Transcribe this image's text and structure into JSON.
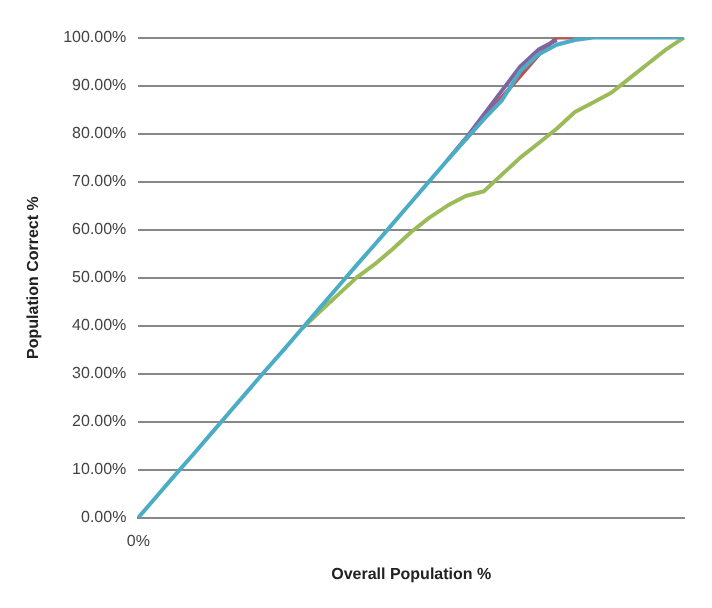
{
  "chart_data": {
    "type": "line",
    "xlabel": "Overall Population %",
    "ylabel": "Population Correct %",
    "categories": [
      "0%",
      null,
      null,
      null,
      null,
      null,
      null,
      null,
      null,
      null,
      null,
      null,
      null,
      null,
      null,
      null,
      null,
      null,
      null,
      null,
      null,
      null,
      null,
      null,
      null,
      null,
      null,
      null,
      null,
      null,
      null
    ],
    "ylim": [
      0,
      100
    ],
    "yticks": [
      {
        "value": 0,
        "label": "0.00%"
      },
      {
        "value": 10,
        "label": "10.00%"
      },
      {
        "value": 20,
        "label": "20.00%"
      },
      {
        "value": 30,
        "label": "30.00%"
      },
      {
        "value": 40,
        "label": "40.00%"
      },
      {
        "value": 50,
        "label": "50.00%"
      },
      {
        "value": 60,
        "label": "60.00%"
      },
      {
        "value": 70,
        "label": "70.00%"
      },
      {
        "value": 80,
        "label": "80.00%"
      },
      {
        "value": 90,
        "label": "90.00%"
      },
      {
        "value": 100,
        "label": "100.00%"
      }
    ],
    "grid": "y",
    "legend": false,
    "marker": "none",
    "line_style": "solid",
    "series": [
      {
        "color": "#c0504d",
        "values": [
          null,
          null,
          null,
          null,
          null,
          null,
          null,
          null,
          null,
          null,
          null,
          null,
          null,
          null,
          null,
          null,
          null,
          null,
          78.8,
          83.2,
          87.6,
          92,
          96.4,
          100,
          100,
          null,
          null,
          null,
          null,
          null,
          null
        ]
      },
      {
        "color": "#8064a2",
        "values": [
          null,
          null,
          null,
          null,
          null,
          null,
          null,
          null,
          null,
          null,
          null,
          null,
          null,
          null,
          null,
          null,
          null,
          74.5,
          79,
          84,
          89,
          94,
          97.5,
          99.5,
          null,
          null,
          null,
          null,
          null,
          null,
          null
        ]
      },
      {
        "color": "#9bbb59",
        "values": [
          null,
          null,
          null,
          null,
          null,
          null,
          null,
          null,
          null,
          39.4,
          43,
          46.5,
          50,
          52.8,
          56,
          59.5,
          62.5,
          65,
          67,
          68,
          71.5,
          75,
          78,
          81,
          84.5,
          86.5,
          88.5,
          91.5,
          94.5,
          97.5,
          100
        ]
      },
      {
        "color": "#4bacc6",
        "values": [
          0,
          4.4,
          8.8,
          13.1,
          17.5,
          21.9,
          26.3,
          30.7,
          35,
          39.4,
          43.8,
          48.2,
          52.6,
          56.9,
          61.3,
          65.7,
          70.1,
          74.5,
          78.8,
          83,
          87,
          93,
          96.5,
          98.5,
          99.5,
          100,
          100,
          100,
          100,
          100,
          100
        ]
      }
    ]
  }
}
